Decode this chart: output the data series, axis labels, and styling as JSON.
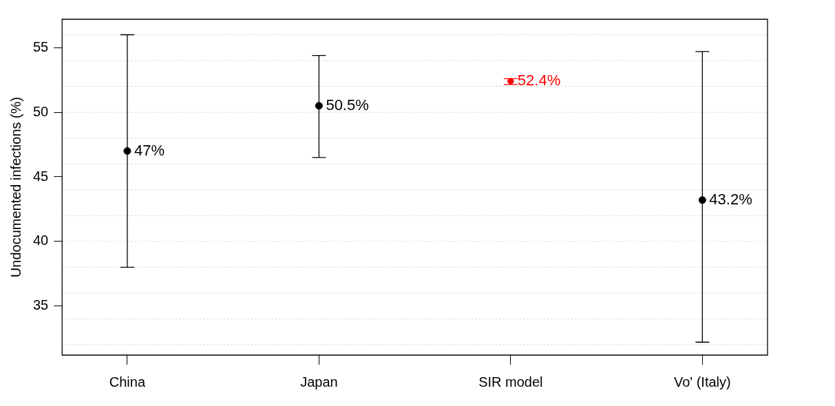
{
  "chart_data": {
    "type": "scatter",
    "ylabel": "Undocumented infections (%)",
    "categories": [
      "China",
      "Japan",
      "SIR model",
      "Vo' (Italy)"
    ],
    "series": [
      {
        "color": "#000000",
        "marker": "circle",
        "values": [
          47,
          50.5,
          null,
          43.2
        ],
        "errors": [
          [
            38,
            56
          ],
          [
            46.5,
            54.4
          ],
          null,
          [
            32.2,
            54.7
          ]
        ],
        "value_labels": [
          "47%",
          "50.5%",
          null,
          "43.2%"
        ]
      },
      {
        "color": "#ff0000",
        "marker": "circle",
        "values": [
          null,
          null,
          52.4,
          null
        ],
        "errors": [
          null,
          null,
          [
            52.15,
            52.6
          ],
          null
        ],
        "value_labels": [
          null,
          null,
          "52.4%",
          null
        ]
      }
    ],
    "ylim": [
      31.2,
      57.2
    ],
    "yticks": [
      35,
      40,
      45,
      50,
      55
    ],
    "ref_lines": [
      {
        "axis": "y",
        "value": 32,
        "color": "#cccccc",
        "line_style": "dotted"
      },
      {
        "axis": "y",
        "value": 34,
        "color": "#cccccc",
        "line_style": "dotted"
      },
      {
        "axis": "y",
        "value": 36,
        "color": "#cccccc",
        "line_style": "dotted"
      },
      {
        "axis": "y",
        "value": 38,
        "color": "#cccccc",
        "line_style": "dotted"
      },
      {
        "axis": "y",
        "value": 40,
        "color": "#cccccc",
        "line_style": "dotted"
      },
      {
        "axis": "y",
        "value": 42,
        "color": "#cccccc",
        "line_style": "dotted"
      },
      {
        "axis": "y",
        "value": 44,
        "color": "#cccccc",
        "line_style": "dotted"
      },
      {
        "axis": "y",
        "value": 46,
        "color": "#cccccc",
        "line_style": "dotted"
      },
      {
        "axis": "y",
        "value": 48,
        "color": "#cccccc",
        "line_style": "dotted"
      },
      {
        "axis": "y",
        "value": 50,
        "color": "#cccccc",
        "line_style": "dotted"
      },
      {
        "axis": "y",
        "value": 52,
        "color": "#cccccc",
        "line_style": "dotted"
      },
      {
        "axis": "y",
        "value": 54,
        "color": "#cccccc",
        "line_style": "dotted"
      },
      {
        "axis": "y",
        "value": 56,
        "color": "#cccccc",
        "line_style": "dotted"
      }
    ],
    "grid": false,
    "legend": false
  }
}
